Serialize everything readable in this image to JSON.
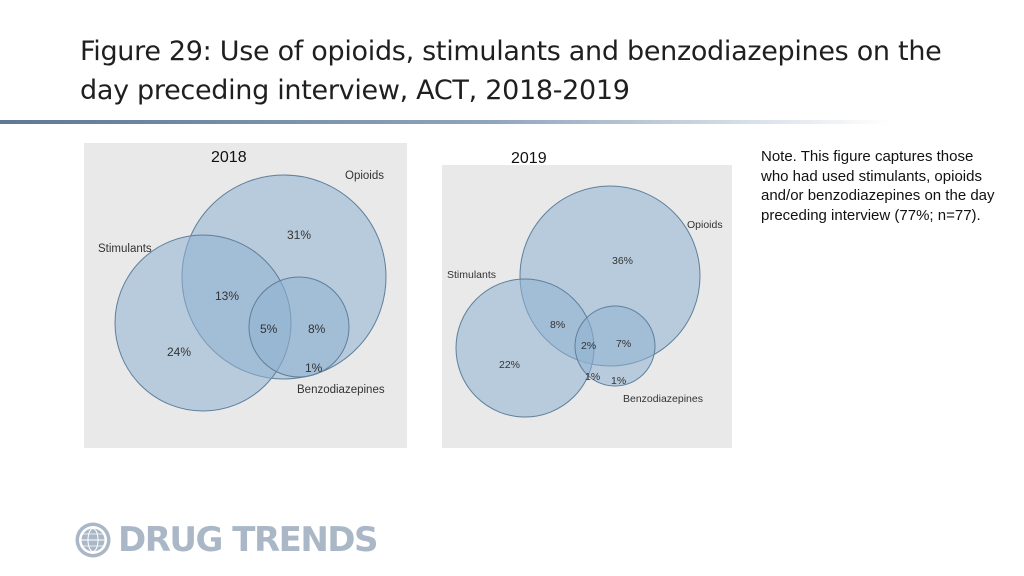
{
  "title": "Figure 29: Use of opioids, stimulants and benzodiazepines on the day preceding interview, ACT, 2018-2019",
  "note": "Note. This figure captures those who had used stimulants, opioids and/or benzodiazepines on the day preceding interview (77%; n=77).",
  "colors": {
    "circle_fill": "#8fb2d1",
    "circle_stroke": "#5f7f9a",
    "panel_bg": "#e9e9e9",
    "logo": "#a9b7c6"
  },
  "diagrams": [
    {
      "year": "2018",
      "set_labels": {
        "opioids": "Opioids",
        "stimulants": "Stimulants",
        "benzodiazepines": "Benzodiazepines"
      },
      "regions": {
        "opioids_only": "31%",
        "stimulants_opioids": "13%",
        "all_three": "5%",
        "opioids_benzo": "8%",
        "stimulants_only": "24%",
        "benzo_only": "1%"
      }
    },
    {
      "year": "2019",
      "set_labels": {
        "opioids": "Opioids",
        "stimulants": "Stimulants",
        "benzodiazepines": "Benzodiazepines"
      },
      "regions": {
        "opioids_only": "36%",
        "stimulants_opioids": "8%",
        "all_three": "2%",
        "opioids_benzo": "7%",
        "stimulants_only": "22%",
        "stimulants_benzo": "1%",
        "benzo_only": "1%"
      }
    }
  ],
  "logo": {
    "text": "DRUG TRENDS",
    "icon": "globe-icon"
  }
}
